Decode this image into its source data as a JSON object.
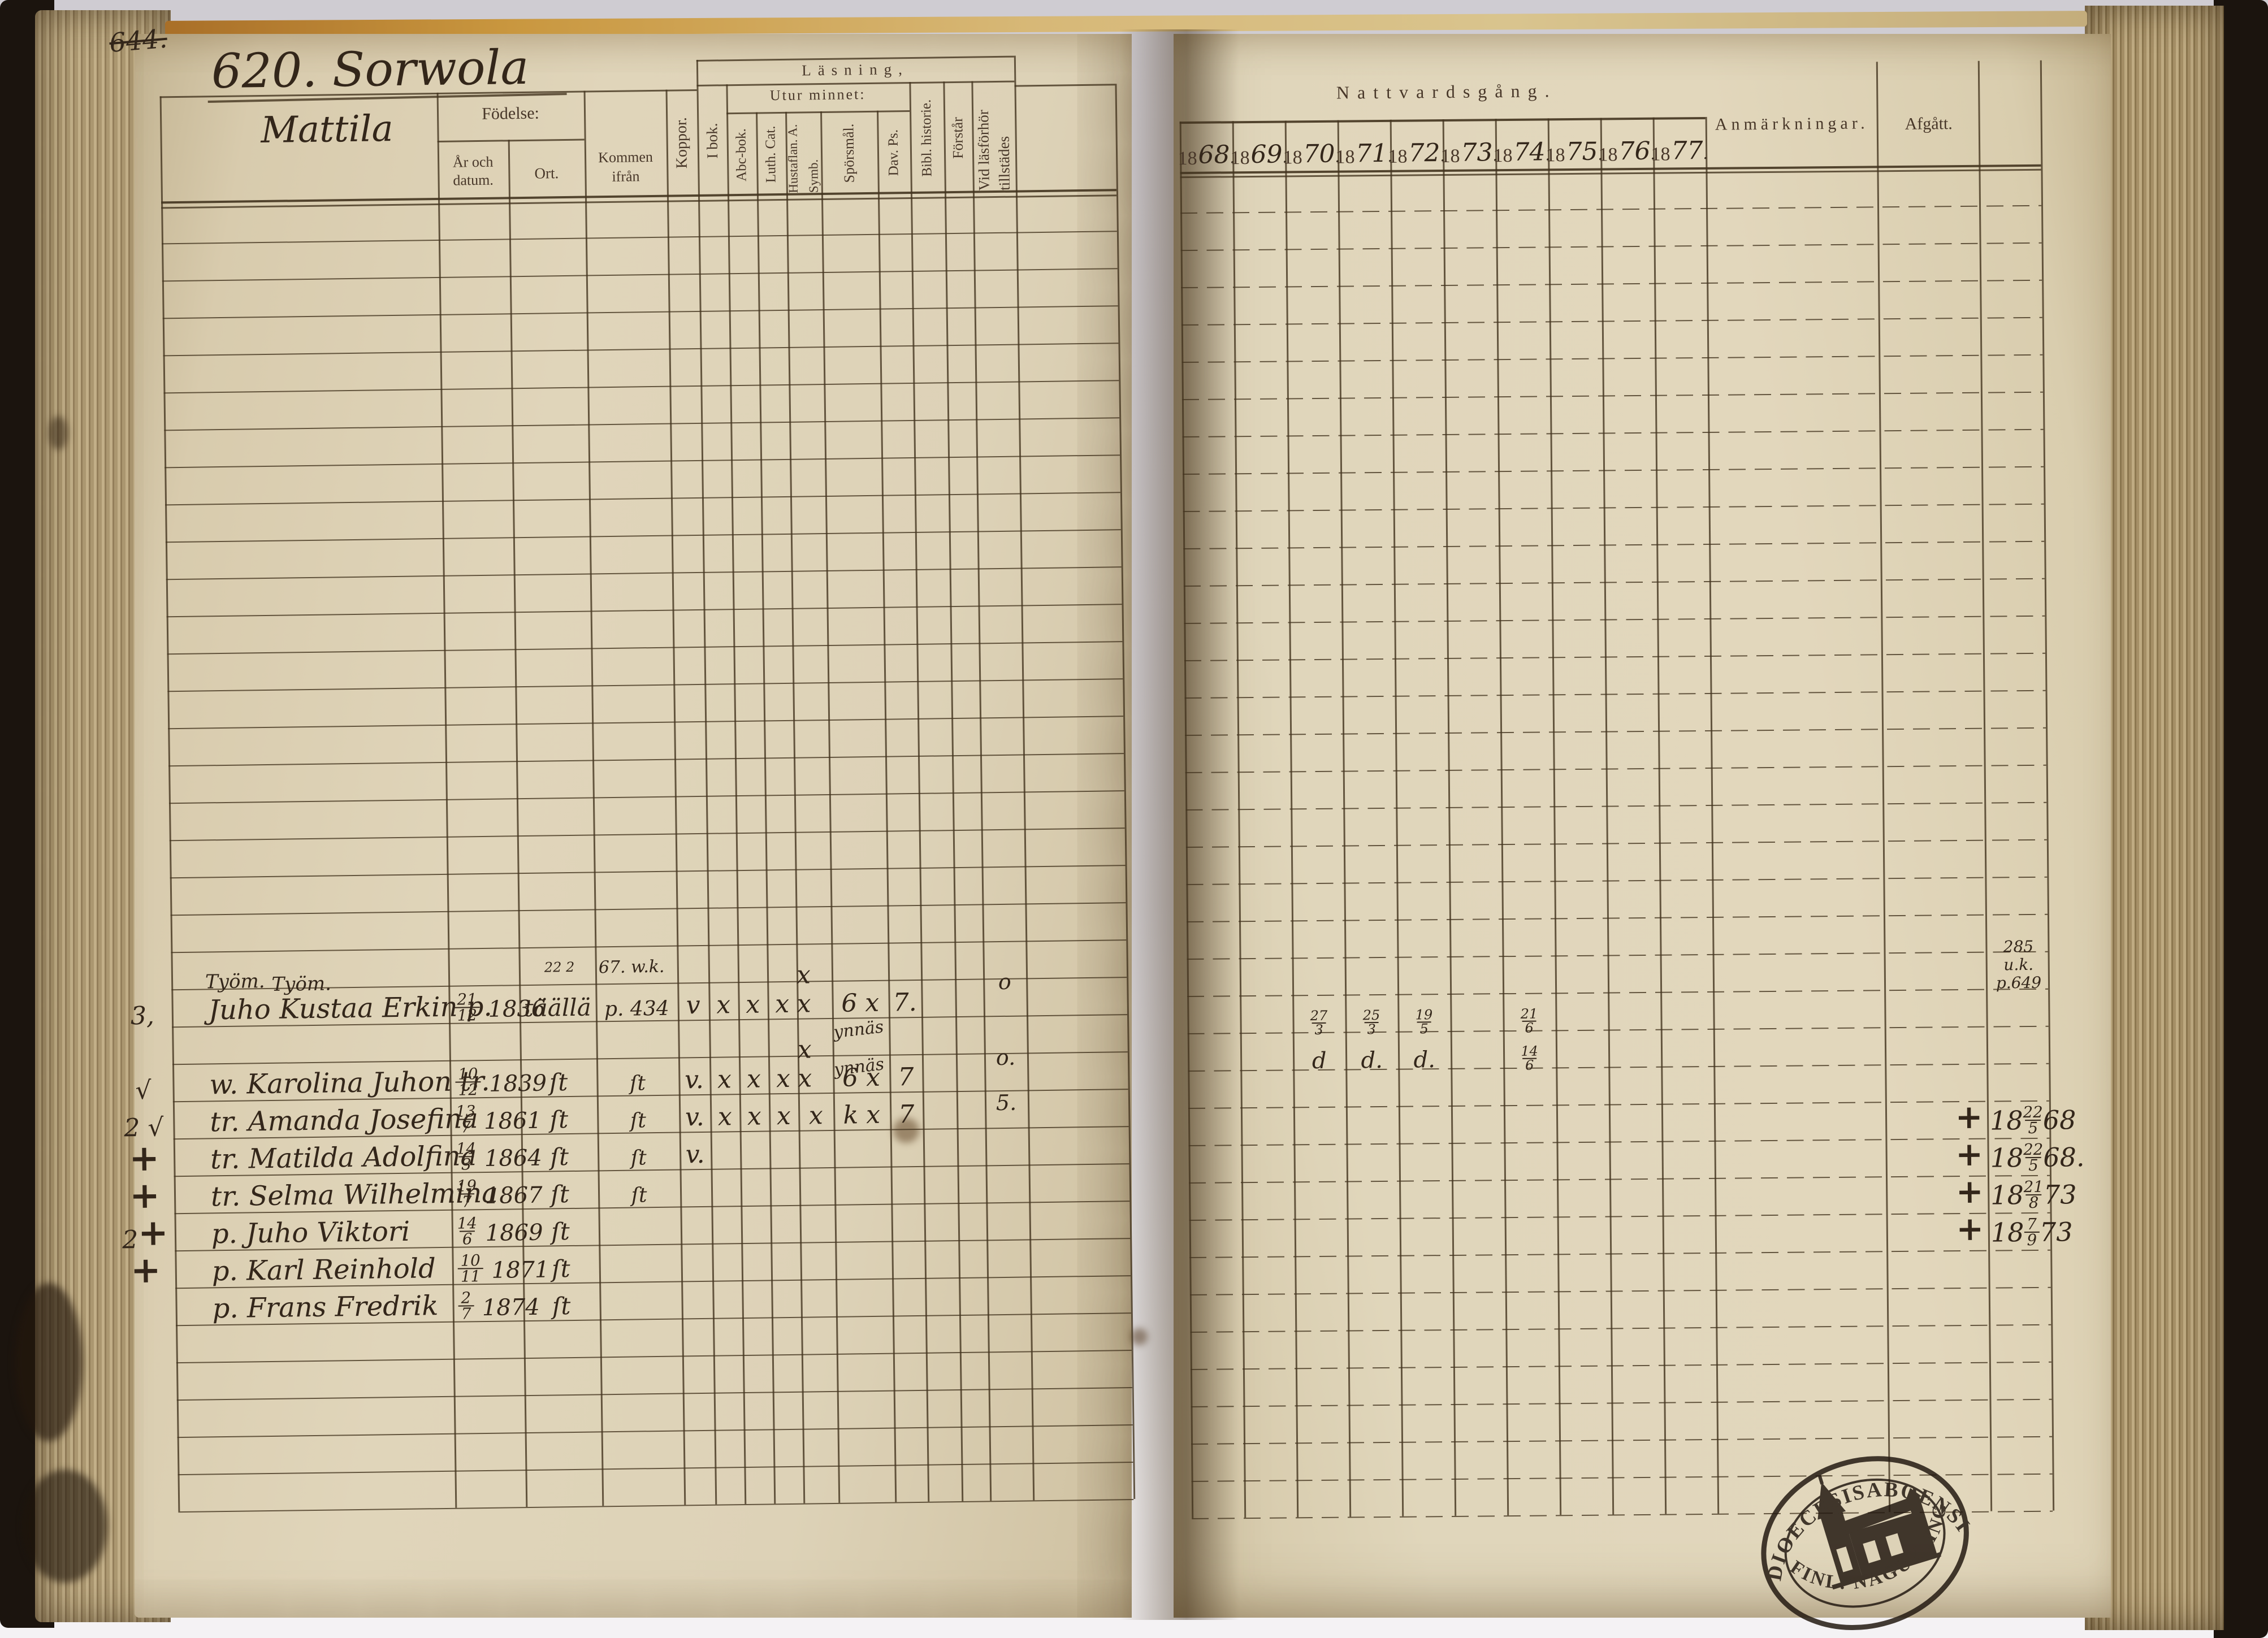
{
  "page": {
    "crossed_note": "644.",
    "number_label": "620.",
    "village": "Sorwola",
    "farm": "Mattila",
    "stamp": {
      "top_text": "DIOECESISABOENSIS.",
      "bottom_text": "FINL. NAGUFLING."
    }
  },
  "left_table": {
    "headers": {
      "fodelse": "Födelse:",
      "ar_och_datum": "År och datum.",
      "ort": "Ort.",
      "kommen_ifran": "Kommen ifrån",
      "koppor": "Koppor.",
      "lasning": "Läsning,",
      "i_bok": "I bok.",
      "utur_minnet": "Utur minnet:",
      "abc_bok": "Abc-bok.",
      "luth_cat": "Luth. Cat.",
      "hustaflan": "Hustaflan. A. Symb.",
      "sporsmal": "Spörsmål.",
      "dav_ps": "Dav. Ps.",
      "bibl_historie": "Bibl. historie.",
      "forstar": "Förstår",
      "vid_lasforhor": "Vid läsförhör tillstädes"
    }
  },
  "right_table": {
    "heading": "Nattvardsgång.",
    "years": [
      "1868",
      "1869",
      "1870",
      "1871",
      "1872",
      "1873",
      "1874",
      "1875",
      "1876",
      "1877"
    ],
    "anmarkningar": "Anmärkningar.",
    "afgatt": "Afgått."
  },
  "entries": [
    {
      "margin": "3,",
      "occupation": "Työm.",
      "name": "Juho Kustaa Erkin p.",
      "birth_frac": "21/12",
      "birth_year": "1836",
      "ort": "täällä",
      "ort_note": "22 2",
      "kommen_line1": "67. w.k.",
      "kommen_line2": "p. 434",
      "koppor": "v",
      "reading": {
        "i_bok": "x",
        "abc_bok": "x",
        "luth_cat": "x",
        "hustaflan": "x x",
        "sporsmal": "6 x",
        "dav_ps": "7."
      },
      "vid": "o",
      "nattvard": {
        "1870": "27/3",
        "1871": "25/3",
        "1872": "19/5",
        "1874": "21/6"
      },
      "afgatt_lines": [
        "285",
        "u.k.",
        "p.649"
      ]
    },
    {
      "margin": "√",
      "name": "w. Karolina Juhon tr.",
      "birth_frac": "10/12",
      "birth_year": "1839",
      "ort": "ſt",
      "kommen_line2": "ſt",
      "koppor": "v.",
      "reading": {
        "i_bok": "x",
        "abc_bok": "x",
        "luth_cat": "x",
        "hustaflan": "x x",
        "sporsmal": "6 x",
        "dav_ps": "7"
      },
      "sporsmal_note": "ynnäs",
      "vid": "o.",
      "nattvard": {
        "1870": "d",
        "1871": "d.",
        "1872": "d.",
        "1874": "14/6"
      }
    },
    {
      "margin": "2 √",
      "name": "tr. Amanda Josefina",
      "birth_frac": "13/7",
      "birth_year": "1861",
      "ort": "ſt",
      "kommen_line2": "ſt",
      "koppor": "v.",
      "reading": {
        "i_bok": "x",
        "abc_bok": "x",
        "luth_cat": "x",
        "hustaflan": "x",
        "sporsmal": "k x",
        "dav_ps": "7"
      },
      "sporsmal_note": "ynnäs",
      "vid": "5."
    },
    {
      "margin": "+",
      "name": "tr. Matilda Adolfina",
      "birth_frac": "14/3",
      "birth_year": "1864",
      "ort": "ſt",
      "kommen_line2": "ſt",
      "koppor": "v.",
      "afgatt": {
        "cross": "+",
        "prefix": "18",
        "frac": "22/5",
        "suffix": "68"
      }
    },
    {
      "margin": "+",
      "name": "tr. Selma Wilhelmina",
      "birth_frac": "19/7",
      "birth_year": "1867",
      "ort": "ſt",
      "kommen_line2": "ſt",
      "afgatt": {
        "cross": "+",
        "prefix": "18",
        "frac": "22/5",
        "suffix": "68."
      }
    },
    {
      "margin": "2 +",
      "name": "p. Juho Viktori",
      "birth_frac": "14/6",
      "birth_year": "1869",
      "ort": "ſt",
      "afgatt": {
        "cross": "+",
        "prefix": "18",
        "frac": "21/8",
        "suffix": "73"
      }
    },
    {
      "margin": "+",
      "name": "p. Karl Reinhold",
      "birth_frac": "10/11",
      "birth_year": "1871",
      "ort": "ſt",
      "afgatt": {
        "cross": "+",
        "prefix": "18",
        "frac": "7/9",
        "suffix": "73"
      }
    },
    {
      "margin": "",
      "name": "p. Frans Fredrik",
      "birth_frac": "2/7",
      "birth_year": "1874",
      "ort": "ſt"
    }
  ]
}
